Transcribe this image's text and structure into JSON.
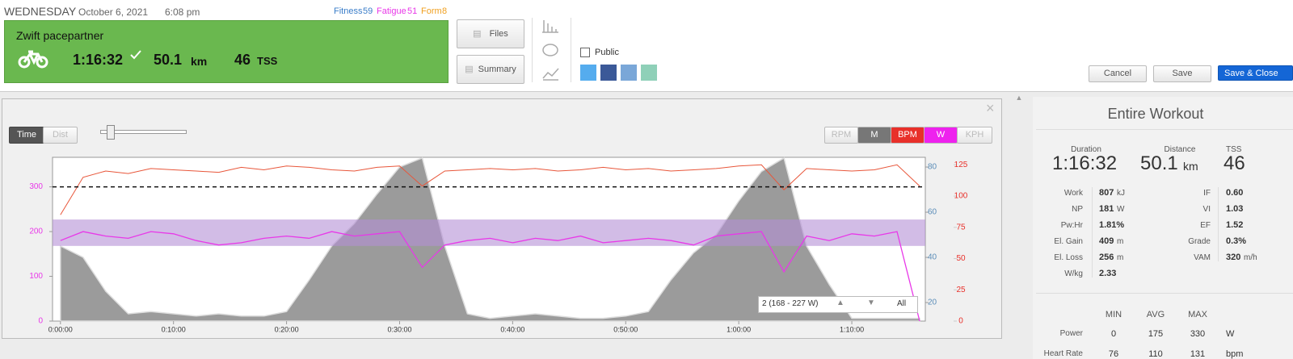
{
  "header": {
    "day": "WEDNESDAY",
    "date": "October 6, 2021",
    "time": "6:08 pm",
    "fitness_label": "Fitness",
    "fitness": "59",
    "fatigue_label": "Fatigue",
    "fatigue": "51",
    "form_label": "Form",
    "form": "8"
  },
  "workout": {
    "title": "Zwift pacepartner",
    "duration": "1:16:32",
    "distance": "50.1",
    "distance_unit": "km",
    "tss": "46",
    "tss_unit": "TSS"
  },
  "buttons": {
    "files": "Files",
    "summary": "Summary",
    "public": "Public",
    "cancel": "Cancel",
    "save": "Save",
    "save_close": "Save & Close"
  },
  "chart_controls": {
    "time": "Time",
    "dist": "Dist",
    "rpm": "RPM",
    "m": "M",
    "bpm": "BPM",
    "w": "W",
    "kph": "KPH",
    "all": "All"
  },
  "chart": {
    "type": "line",
    "x": [
      0,
      2,
      4,
      6,
      8,
      10,
      12,
      14,
      16,
      18,
      20,
      22,
      24,
      26,
      28,
      30,
      32,
      34,
      36,
      38,
      40,
      42,
      44,
      46,
      48,
      50,
      52,
      54,
      56,
      58,
      60,
      62,
      64,
      66,
      68,
      70,
      72,
      74,
      76
    ],
    "xlim": [
      -0.7,
      76.5
    ],
    "xticks": [
      {
        "value": 0,
        "label": "0:00:00"
      },
      {
        "value": 10,
        "label": "0:10:00"
      },
      {
        "value": 20,
        "label": "0:20:00"
      },
      {
        "value": 30,
        "label": "0:30:00"
      },
      {
        "value": 40,
        "label": "0:40:00"
      },
      {
        "value": 50,
        "label": "0:50:00"
      },
      {
        "value": 60,
        "label": "1:00:00"
      },
      {
        "value": 70,
        "label": "1:10:00"
      }
    ],
    "ylim": [
      0,
      366
    ],
    "yticks": [
      0,
      100,
      200,
      300
    ],
    "y2lim": [
      11.8,
      84.3
    ],
    "y2ticks": [
      20,
      40,
      60,
      80
    ],
    "y3lim": [
      0,
      131
    ],
    "y3ticks": [
      0,
      25,
      50,
      75,
      100,
      125
    ],
    "reference_line": 300,
    "zone": {
      "label": "2 (168 - 227 W)",
      "range": [
        168,
        227
      ],
      "color": "#b48fd6"
    },
    "series": [
      {
        "name": "W",
        "axis": "y",
        "color": "#e838e8",
        "values": [
          180,
          200,
          190,
          185,
          200,
          195,
          180,
          170,
          175,
          185,
          190,
          185,
          200,
          190,
          195,
          200,
          120,
          170,
          180,
          185,
          175,
          185,
          180,
          190,
          175,
          180,
          185,
          180,
          170,
          190,
          195,
          200,
          110,
          190,
          180,
          195,
          190,
          200,
          0
        ]
      },
      {
        "name": "BPM",
        "axis": "y3",
        "color": "#e8563a",
        "values": [
          85,
          115,
          120,
          118,
          122,
          121,
          120,
          119,
          123,
          121,
          124,
          123,
          121,
          120,
          123,
          124,
          108,
          120,
          121,
          122,
          121,
          122,
          120,
          121,
          123,
          121,
          122,
          120,
          121,
          122,
          124,
          125,
          105,
          122,
          121,
          120,
          121,
          125,
          108
        ]
      },
      {
        "name": "M",
        "axis": "y2",
        "color": "#8a8a8a",
        "values": [
          45,
          40,
          25,
          15,
          16,
          15,
          14,
          15,
          14,
          14,
          16,
          30,
          45,
          55,
          68,
          80,
          84,
          45,
          15,
          13,
          14,
          15,
          14,
          13,
          13,
          14,
          16,
          30,
          42,
          50,
          65,
          78,
          84,
          45,
          28,
          13,
          13,
          13,
          13
        ]
      }
    ]
  },
  "summary": {
    "title": "Entire Workout",
    "duration_label": "Duration",
    "duration": "1:16:32",
    "distance_label": "Distance",
    "distance": "50.1",
    "distance_unit": "km",
    "tss_label": "TSS",
    "tss": "46",
    "left_metrics": [
      [
        "Work",
        "807",
        "kJ"
      ],
      [
        "NP",
        "181",
        "W"
      ],
      [
        "Pw:Hr",
        "1.81%",
        ""
      ],
      [
        "El. Gain",
        "409",
        "m"
      ],
      [
        "El. Loss",
        "256",
        "m"
      ],
      [
        "W/kg",
        "2.33",
        ""
      ]
    ],
    "right_metrics": [
      [
        "IF",
        "0.60",
        ""
      ],
      [
        "VI",
        "1.03",
        ""
      ],
      [
        "EF",
        "1.52",
        ""
      ],
      [
        "Grade",
        "0.3%",
        ""
      ],
      [
        "VAM",
        "320",
        "m/h"
      ]
    ],
    "table_header": [
      "MIN",
      "AVG",
      "MAX"
    ],
    "table_rows": [
      [
        "Power",
        "0",
        "175",
        "330",
        "W"
      ],
      [
        "Heart Rate",
        "76",
        "110",
        "131",
        "bpm"
      ]
    ]
  }
}
